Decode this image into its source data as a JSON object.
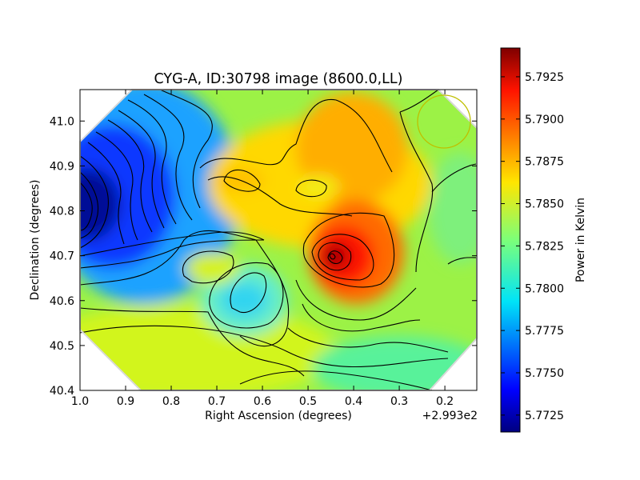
{
  "chart_data": {
    "type": "heatmap",
    "title": "CYG-A, ID:30798 image (8600.0,LL)",
    "xlabel": "Right Ascension (degrees)",
    "ylabel": "Declination (degrees)",
    "x_offset_label": "+2.993e2",
    "xlim": [
      1.0,
      0.13
    ],
    "ylim": [
      40.4,
      41.07
    ],
    "x_ticks": [
      "1.0",
      "0.9",
      "0.8",
      "0.7",
      "0.6",
      "0.5",
      "0.4",
      "0.3",
      "0.2"
    ],
    "x_tick_values": [
      1.0,
      0.9,
      0.8,
      0.7,
      0.6,
      0.5,
      0.4,
      0.3,
      0.2
    ],
    "y_ticks": [
      "40.4",
      "40.5",
      "40.6",
      "40.7",
      "40.8",
      "40.9",
      "41.0"
    ],
    "y_tick_values": [
      40.4,
      40.5,
      40.6,
      40.7,
      40.8,
      40.9,
      41.0
    ],
    "colorbar": {
      "label": "Power in Kelvin",
      "colormap": "jet",
      "range": [
        5.7715,
        5.7942
      ],
      "ticks": [
        "5.7725",
        "5.7750",
        "5.7775",
        "5.7800",
        "5.7825",
        "5.7850",
        "5.7875",
        "5.7900",
        "5.7925"
      ],
      "tick_values": [
        5.7725,
        5.775,
        5.7775,
        5.78,
        5.7825,
        5.785,
        5.7875,
        5.79,
        5.7925
      ]
    },
    "contours": true,
    "beam_circle": {
      "ra": 0.2,
      "dec": 40.995,
      "radius_deg": 0.063,
      "color": "#bfbf00"
    },
    "features": [
      {
        "kind": "peak",
        "ra": 0.45,
        "dec": 40.7,
        "value": 5.794
      },
      {
        "kind": "minimum",
        "ra": 1.0,
        "dec": 40.82,
        "value": 5.7716
      }
    ]
  }
}
